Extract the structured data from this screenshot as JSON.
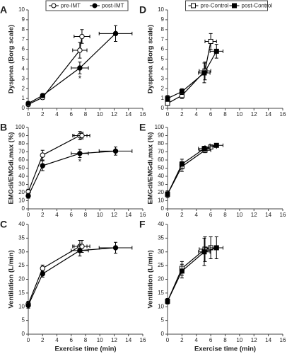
{
  "chart_data": [
    {
      "type": "line",
      "panel_label": "A",
      "ylabel": "Dyspnea (Borg scale)",
      "xlim": [
        0,
        16
      ],
      "xticks": [
        0,
        2,
        4,
        6,
        8,
        10,
        12,
        14,
        16
      ],
      "ylim": [
        0,
        10
      ],
      "yticks": [
        0,
        1,
        2,
        3,
        4,
        5,
        6,
        7,
        8,
        9,
        10
      ],
      "series": [
        {
          "name": "pre-IMT",
          "marker": "circle",
          "color": "#000000",
          "marker_fill": "#ffffff",
          "x": [
            0,
            2,
            7.2,
            7.5
          ],
          "values": [
            0.4,
            1.1,
            5.9,
            7.3
          ],
          "xerr": [
            0,
            0,
            1,
            1.1
          ],
          "yerr": [
            0.2,
            0.2,
            0.8,
            0.7
          ]
        },
        {
          "name": "post-IMT",
          "marker": "circle",
          "color": "#000000",
          "marker_fill": "#000000",
          "x": [
            0,
            2,
            7.2,
            12.2
          ],
          "values": [
            0.5,
            1.3,
            4.1,
            7.6
          ],
          "xerr": [
            0,
            0,
            1.2,
            2.3
          ],
          "yerr": [
            0.2,
            0.2,
            0.6,
            0.8
          ]
        }
      ],
      "annotations": [
        {
          "text": "*",
          "x": 7.2,
          "y": 3.1
        }
      ]
    },
    {
      "type": "line",
      "panel_label": "B",
      "ylabel": "EMGdi/EMGdi,max (%)",
      "xlim": [
        0,
        16
      ],
      "xticks": [
        0,
        2,
        4,
        6,
        8,
        10,
        12,
        14,
        16
      ],
      "ylim": [
        0,
        100
      ],
      "yticks": [
        0,
        10,
        20,
        30,
        40,
        50,
        60,
        70,
        80,
        90,
        100
      ],
      "series": [
        {
          "marker": "circle",
          "color": "#000000",
          "marker_fill": "#ffffff",
          "x": [
            0,
            2,
            7.2,
            7.5
          ],
          "values": [
            21,
            66,
            90,
            90
          ],
          "xerr": [
            0,
            0,
            1,
            1.1
          ],
          "yerr": [
            3,
            6,
            5,
            4
          ]
        },
        {
          "marker": "circle",
          "color": "#000000",
          "marker_fill": "#000000",
          "x": [
            0,
            2,
            7.2,
            12.2
          ],
          "values": [
            16,
            53,
            68,
            71
          ],
          "xerr": [
            0,
            0,
            1.2,
            2.3
          ],
          "yerr": [
            3,
            6,
            5,
            5
          ]
        }
      ],
      "annotations": [
        {
          "text": "*",
          "x": 7.2,
          "y": 59
        }
      ]
    },
    {
      "type": "line",
      "panel_label": "C",
      "ylabel": "Ventilation (L/min)",
      "xlabel": "Exercise time (min)",
      "xlim": [
        0,
        16
      ],
      "xticks": [
        0,
        2,
        4,
        6,
        8,
        10,
        12,
        14,
        16
      ],
      "ylim": [
        0,
        40
      ],
      "yticks": [
        0,
        5,
        10,
        15,
        20,
        25,
        30,
        35,
        40
      ],
      "series": [
        {
          "marker": "circle",
          "color": "#000000",
          "marker_fill": "#ffffff",
          "x": [
            0,
            2,
            7.2,
            7.5
          ],
          "values": [
            11,
            24,
            32,
            32
          ],
          "xerr": [
            0,
            0,
            1,
            1.1
          ],
          "yerr": [
            1,
            1.2,
            2.2,
            2.2
          ]
        },
        {
          "marker": "circle",
          "color": "#000000",
          "marker_fill": "#000000",
          "x": [
            0,
            2,
            7.2,
            12.2
          ],
          "values": [
            10.5,
            22,
            30.5,
            31.5
          ],
          "xerr": [
            0,
            0,
            1.2,
            2.3
          ],
          "yerr": [
            1,
            1.2,
            2,
            2
          ]
        }
      ],
      "annotations": []
    },
    {
      "type": "line",
      "panel_label": "D",
      "ylabel": "Dyspnea (Borg scale)",
      "xlim": [
        0,
        16
      ],
      "xticks": [
        0,
        2,
        4,
        6,
        8,
        10,
        12,
        14,
        16
      ],
      "ylim": [
        0,
        10
      ],
      "yticks": [
        0,
        1,
        2,
        3,
        4,
        5,
        6,
        7,
        8,
        9,
        10
      ],
      "series": [
        {
          "name": "pre-Control",
          "marker": "square",
          "color": "#000000",
          "marker_fill": "#ffffff",
          "x": [
            0,
            2,
            5.2,
            6
          ],
          "values": [
            0.5,
            1.3,
            3.8,
            6.8
          ],
          "xerr": [
            0,
            0,
            0.8,
            0.8
          ],
          "yerr": [
            0.2,
            0.3,
            0.9,
            0.8
          ]
        },
        {
          "name": "post-Control",
          "marker": "square",
          "color": "#000000",
          "marker_fill": "#000000",
          "x": [
            0,
            2,
            5.1,
            6.8
          ],
          "values": [
            1,
            1.7,
            3.6,
            5.8
          ],
          "xerr": [
            0,
            0,
            0.8,
            0.9
          ],
          "yerr": [
            0.3,
            0.3,
            1,
            0.7
          ]
        }
      ],
      "annotations": []
    },
    {
      "type": "line",
      "panel_label": "E",
      "ylabel": "EMGdi/EMGdi,max (%)",
      "xlim": [
        0,
        16
      ],
      "xticks": [
        0,
        2,
        4,
        6,
        8,
        10,
        12,
        14,
        16
      ],
      "ylim": [
        0,
        100
      ],
      "yticks": [
        0,
        10,
        20,
        30,
        40,
        50,
        60,
        70,
        80,
        90,
        100
      ],
      "series": [
        {
          "marker": "square",
          "color": "#000000",
          "marker_fill": "#ffffff",
          "x": [
            0,
            2,
            5.2,
            6
          ],
          "values": [
            18,
            52,
            72,
            76
          ],
          "xerr": [
            0,
            0,
            0.8,
            0.8
          ],
          "yerr": [
            4,
            6,
            3,
            2
          ]
        },
        {
          "marker": "square",
          "color": "#000000",
          "marker_fill": "#000000",
          "x": [
            0,
            2,
            5.1,
            6.8
          ],
          "values": [
            18,
            55,
            74,
            78
          ],
          "xerr": [
            0,
            0,
            0.8,
            0.9
          ],
          "yerr": [
            4,
            6,
            3,
            2
          ]
        }
      ],
      "annotations": []
    },
    {
      "type": "line",
      "panel_label": "F",
      "ylabel": "Ventilation (L/min)",
      "xlabel": "Exercise time (min)",
      "xlim": [
        0,
        16
      ],
      "xticks": [
        0,
        2,
        4,
        6,
        8,
        10,
        12,
        14,
        16
      ],
      "ylim": [
        0,
        40
      ],
      "yticks": [
        0,
        5,
        10,
        15,
        20,
        25,
        30,
        35,
        40
      ],
      "series": [
        {
          "marker": "square",
          "color": "#000000",
          "marker_fill": "#ffffff",
          "x": [
            0,
            2,
            5.2,
            6
          ],
          "values": [
            12,
            24,
            31,
            31.5
          ],
          "xerr": [
            0,
            0,
            0.8,
            0.8
          ],
          "yerr": [
            1,
            2.5,
            4.5,
            4
          ]
        },
        {
          "marker": "square",
          "color": "#000000",
          "marker_fill": "#000000",
          "x": [
            0,
            2,
            5.1,
            6.8
          ],
          "values": [
            12,
            23,
            30,
            31.5
          ],
          "xerr": [
            0,
            0,
            0.8,
            0.9
          ],
          "yerr": [
            1,
            2.5,
            5,
            4
          ]
        }
      ],
      "annotations": []
    }
  ]
}
